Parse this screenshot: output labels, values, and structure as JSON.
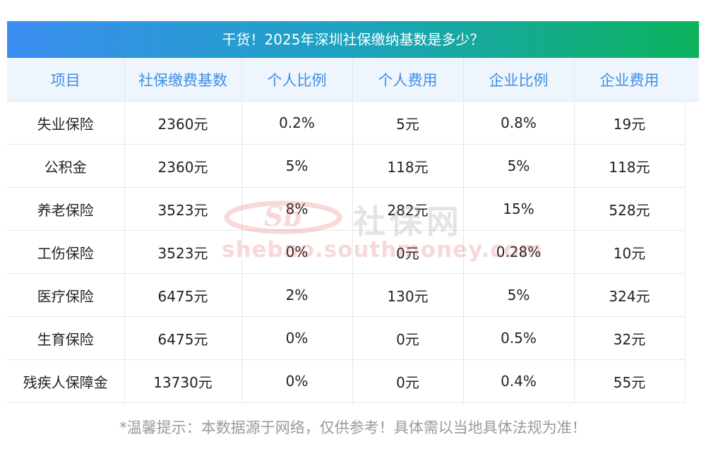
{
  "title": "干货！2025年深圳社保缴纳基数是多少？",
  "table": {
    "headers": [
      "项目",
      "社保缴费基数",
      "个人比例",
      "个人费用",
      "企业比例",
      "企业费用"
    ],
    "rows": [
      [
        "失业保险",
        "2360元",
        "0.2%",
        "5元",
        "0.8%",
        "19元"
      ],
      [
        "公积金",
        "2360元",
        "5%",
        "118元",
        "5%",
        "118元"
      ],
      [
        "养老保险",
        "3523元",
        "8%",
        "282元",
        "15%",
        "528元"
      ],
      [
        "工伤保险",
        "3523元",
        "0%",
        "0元",
        "0.28%",
        "10元"
      ],
      [
        "医疗保险",
        "6475元",
        "2%",
        "130元",
        "5%",
        "324元"
      ],
      [
        "生育保险",
        "6475元",
        "0%",
        "0元",
        "0.5%",
        "32元"
      ],
      [
        "残疾人保障金",
        "13730元",
        "0%",
        "0元",
        "0.4%",
        "55元"
      ]
    ]
  },
  "footnote": "*温馨提示：本数据源于网络，仅供参考！具体需以当地具体法规为准！",
  "watermark": {
    "logo_text": "Sb",
    "cn_text": "社保网",
    "url_text": "shebao.southmoney.com"
  },
  "colors": {
    "title_gradient_start": "#3b8cf0",
    "title_gradient_end": "#0db35c",
    "header_text": "#3f8ee6",
    "header_bg": "#eef5fd",
    "footnote_text": "#9a9a9a"
  }
}
